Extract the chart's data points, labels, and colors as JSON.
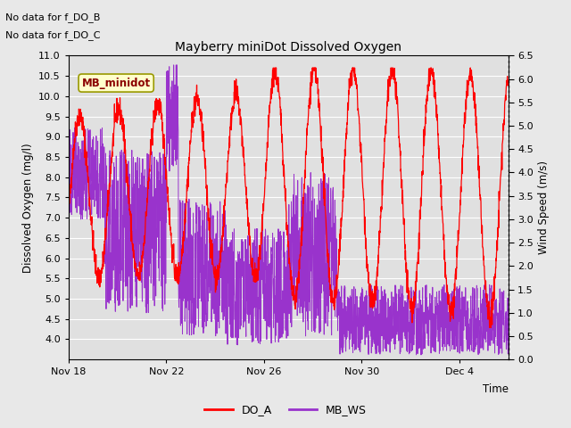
{
  "title": "Mayberry miniDot Dissolved Oxygen",
  "xlabel": "Time",
  "ylabel_left": "Dissolved Oxygen (mg/l)",
  "ylabel_right": "Wind Speed (m/s)",
  "ylim_left": [
    3.5,
    11.0
  ],
  "ylim_right": [
    0.0,
    6.5
  ],
  "yticks_left": [
    4.0,
    4.5,
    5.0,
    5.5,
    6.0,
    6.5,
    7.0,
    7.5,
    8.0,
    8.5,
    9.0,
    9.5,
    10.0,
    10.5,
    11.0
  ],
  "yticks_right": [
    0.0,
    0.5,
    1.0,
    1.5,
    2.0,
    2.5,
    3.0,
    3.5,
    4.0,
    4.5,
    5.0,
    5.5,
    6.0,
    6.5
  ],
  "text_annotations": [
    "No data for f_DO_B",
    "No data for f_DO_C"
  ],
  "legend_label_text": "MB_minidot",
  "legend_entries": [
    "DO_A",
    "MB_WS"
  ],
  "do_color": "red",
  "ws_color": "#9933CC",
  "fig_bg_color": "#e8e8e8",
  "plot_bg_color": "#e0e0e0",
  "grid_color": "white",
  "xtick_labels": [
    "Nov 18",
    "Nov 22",
    "Nov 26",
    "Nov 30",
    "Dec 4"
  ],
  "xtick_positions": [
    0,
    4,
    8,
    12,
    16
  ],
  "xlim": [
    0,
    18
  ],
  "seed": 42
}
